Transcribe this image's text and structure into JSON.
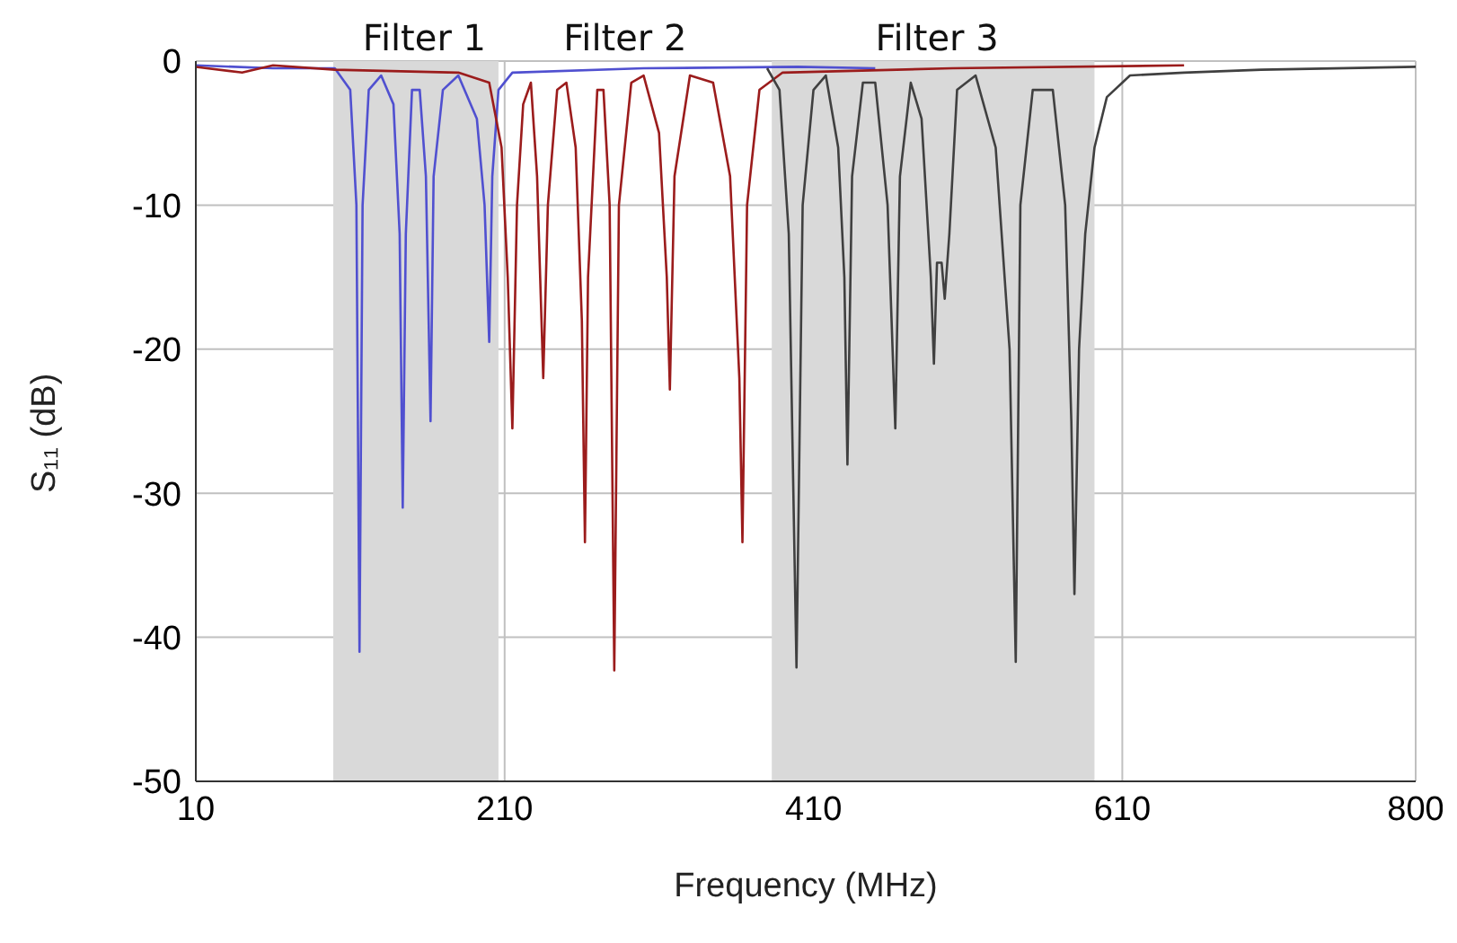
{
  "chart_data": {
    "type": "line",
    "xlabel": "Frequency (MHz)",
    "ylabel": "S₁₁ (dB)",
    "xlim": [
      10,
      800
    ],
    "xticks": [
      10,
      210,
      410,
      610,
      800
    ],
    "ylim": [
      -50,
      0
    ],
    "yticks": [
      -50,
      -40,
      -30,
      -20,
      -10,
      0
    ],
    "grid": true,
    "marker": "none",
    "line_style": "solid",
    "annotations": [
      "Filter 1",
      "Filter 2",
      "Filter 3"
    ],
    "bands": [
      {
        "axis": "x",
        "from": 99,
        "to": 206,
        "color": "#d9d9d9"
      },
      {
        "axis": "x",
        "from": 383,
        "to": 592,
        "color": "#d9d9d9"
      }
    ],
    "series": [
      {
        "color": "#5050d0",
        "x": [
          10,
          60,
          100,
          110,
          114,
          116,
          118,
          122,
          130,
          138,
          142,
          144,
          146,
          150,
          155,
          159,
          162,
          164,
          170,
          180,
          192,
          197,
          200,
          202,
          206,
          215,
          300,
          400,
          450
        ],
        "values": [
          -0.3,
          -0.5,
          -0.5,
          -2,
          -10,
          -41,
          -10,
          -2,
          -1,
          -3,
          -12,
          -31,
          -12,
          -2,
          -2,
          -8,
          -25,
          -8,
          -2,
          -1,
          -4,
          -10,
          -19.5,
          -8,
          -2,
          -0.8,
          -0.5,
          -0.4,
          -0.5
        ]
      },
      {
        "color": "#9b1c1c",
        "x": [
          10,
          40,
          60,
          100,
          180,
          200,
          208,
          212,
          215,
          218,
          222,
          227,
          231,
          235,
          238,
          244,
          250,
          256,
          260,
          262,
          264,
          270,
          274,
          278,
          281,
          284,
          292,
          300,
          310,
          315,
          317,
          320,
          330,
          345,
          356,
          362,
          364,
          367,
          375,
          390,
          500,
          650
        ],
        "values": [
          -0.4,
          -0.8,
          -0.3,
          -0.6,
          -0.8,
          -1.5,
          -6,
          -15,
          -25.5,
          -10,
          -3,
          -1.5,
          -8,
          -22,
          -10,
          -2,
          -1.5,
          -6,
          -18,
          -33.4,
          -15,
          -2,
          -2,
          -10,
          -42.3,
          -10,
          -1.5,
          -1,
          -5,
          -15,
          -22.8,
          -8,
          -1,
          -1.5,
          -8,
          -22,
          -33.4,
          -10,
          -2,
          -0.8,
          -0.5,
          -0.3
        ]
      },
      {
        "color": "#404040",
        "x": [
          380,
          388,
          394,
          399,
          403,
          410,
          418,
          426,
          430,
          432,
          435,
          442,
          450,
          458,
          463,
          466,
          473,
          480,
          486,
          488,
          490,
          493,
          495,
          498,
          503,
          515,
          528,
          537,
          541,
          544,
          552,
          565,
          573,
          577,
          579,
          582,
          586,
          592,
          600,
          615,
          650,
          700,
          800
        ],
        "values": [
          -0.5,
          -2,
          -12,
          -42.1,
          -10,
          -2,
          -1,
          -6,
          -15,
          -28,
          -8,
          -1.5,
          -1.5,
          -10,
          -25.5,
          -8,
          -1.5,
          -4,
          -15,
          -21,
          -14,
          -14,
          -16.5,
          -12,
          -2,
          -1,
          -6,
          -20,
          -41.7,
          -10,
          -2,
          -2,
          -10,
          -25,
          -37,
          -20,
          -12,
          -6,
          -2.5,
          -1,
          -0.8,
          -0.6,
          -0.4
        ]
      }
    ]
  }
}
